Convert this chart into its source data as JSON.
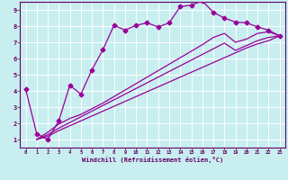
{
  "bg_color": "#c8eef0",
  "line_color": "#990099",
  "grid_color": "#ffffff",
  "border_color": "#660066",
  "xlabel": "Windchill (Refroidissement éolien,°C)",
  "xlim": [
    -0.5,
    23.5
  ],
  "ylim": [
    0.5,
    9.5
  ],
  "xticks": [
    0,
    1,
    2,
    3,
    4,
    5,
    6,
    7,
    8,
    9,
    10,
    11,
    12,
    13,
    14,
    15,
    16,
    17,
    18,
    19,
    20,
    21,
    22,
    23
  ],
  "yticks": [
    1,
    2,
    3,
    4,
    5,
    6,
    7,
    8,
    9
  ],
  "line1_x": [
    0,
    1,
    2,
    3,
    4,
    5,
    6,
    7,
    8,
    9,
    10,
    11,
    12,
    13,
    14,
    15,
    16,
    17,
    18,
    19,
    20,
    21,
    22,
    23
  ],
  "line1_y": [
    4.1,
    1.35,
    1.0,
    2.15,
    4.35,
    3.8,
    5.3,
    6.55,
    8.05,
    7.75,
    8.05,
    8.2,
    7.95,
    8.2,
    9.2,
    9.3,
    9.55,
    8.85,
    8.5,
    8.25,
    8.2,
    7.95,
    7.75,
    7.4
  ],
  "line2_x": [
    1,
    2,
    3,
    4,
    5,
    6,
    7,
    8,
    9,
    10,
    11,
    12,
    13,
    14,
    15,
    16,
    17,
    18,
    19,
    20,
    21,
    22,
    23
  ],
  "line2_y": [
    1.0,
    1.45,
    1.95,
    2.3,
    2.55,
    2.9,
    3.25,
    3.65,
    4.05,
    4.45,
    4.85,
    5.25,
    5.65,
    6.05,
    6.45,
    6.85,
    7.3,
    7.55,
    7.0,
    7.2,
    7.55,
    7.65,
    7.4
  ],
  "line3_x": [
    1,
    23
  ],
  "line3_y": [
    1.0,
    7.4
  ],
  "line4_x": [
    1,
    23
  ],
  "line4_y": [
    1.0,
    7.4
  ],
  "smooth2_x": [
    1,
    2,
    3,
    4,
    5,
    6,
    7,
    8,
    9,
    10,
    11,
    12,
    13,
    14,
    15,
    16,
    17,
    18,
    19,
    20,
    21,
    22,
    23
  ],
  "smooth2_y": [
    1.0,
    1.3,
    1.7,
    2.05,
    2.4,
    2.75,
    3.1,
    3.45,
    3.8,
    4.15,
    4.5,
    4.85,
    5.2,
    5.55,
    5.9,
    6.25,
    6.6,
    6.95,
    6.5,
    6.8,
    7.1,
    7.3,
    7.4
  ],
  "smooth3_x": [
    1,
    2,
    3,
    4,
    5,
    6,
    7,
    8,
    9,
    10,
    11,
    12,
    13,
    14,
    15,
    16,
    17,
    18,
    19,
    20,
    21,
    22,
    23
  ],
  "smooth3_y": [
    1.0,
    1.2,
    1.55,
    1.85,
    2.15,
    2.45,
    2.75,
    3.05,
    3.35,
    3.65,
    3.95,
    4.25,
    4.55,
    4.85,
    5.15,
    5.45,
    5.75,
    6.05,
    6.35,
    6.65,
    6.9,
    7.1,
    7.4
  ]
}
